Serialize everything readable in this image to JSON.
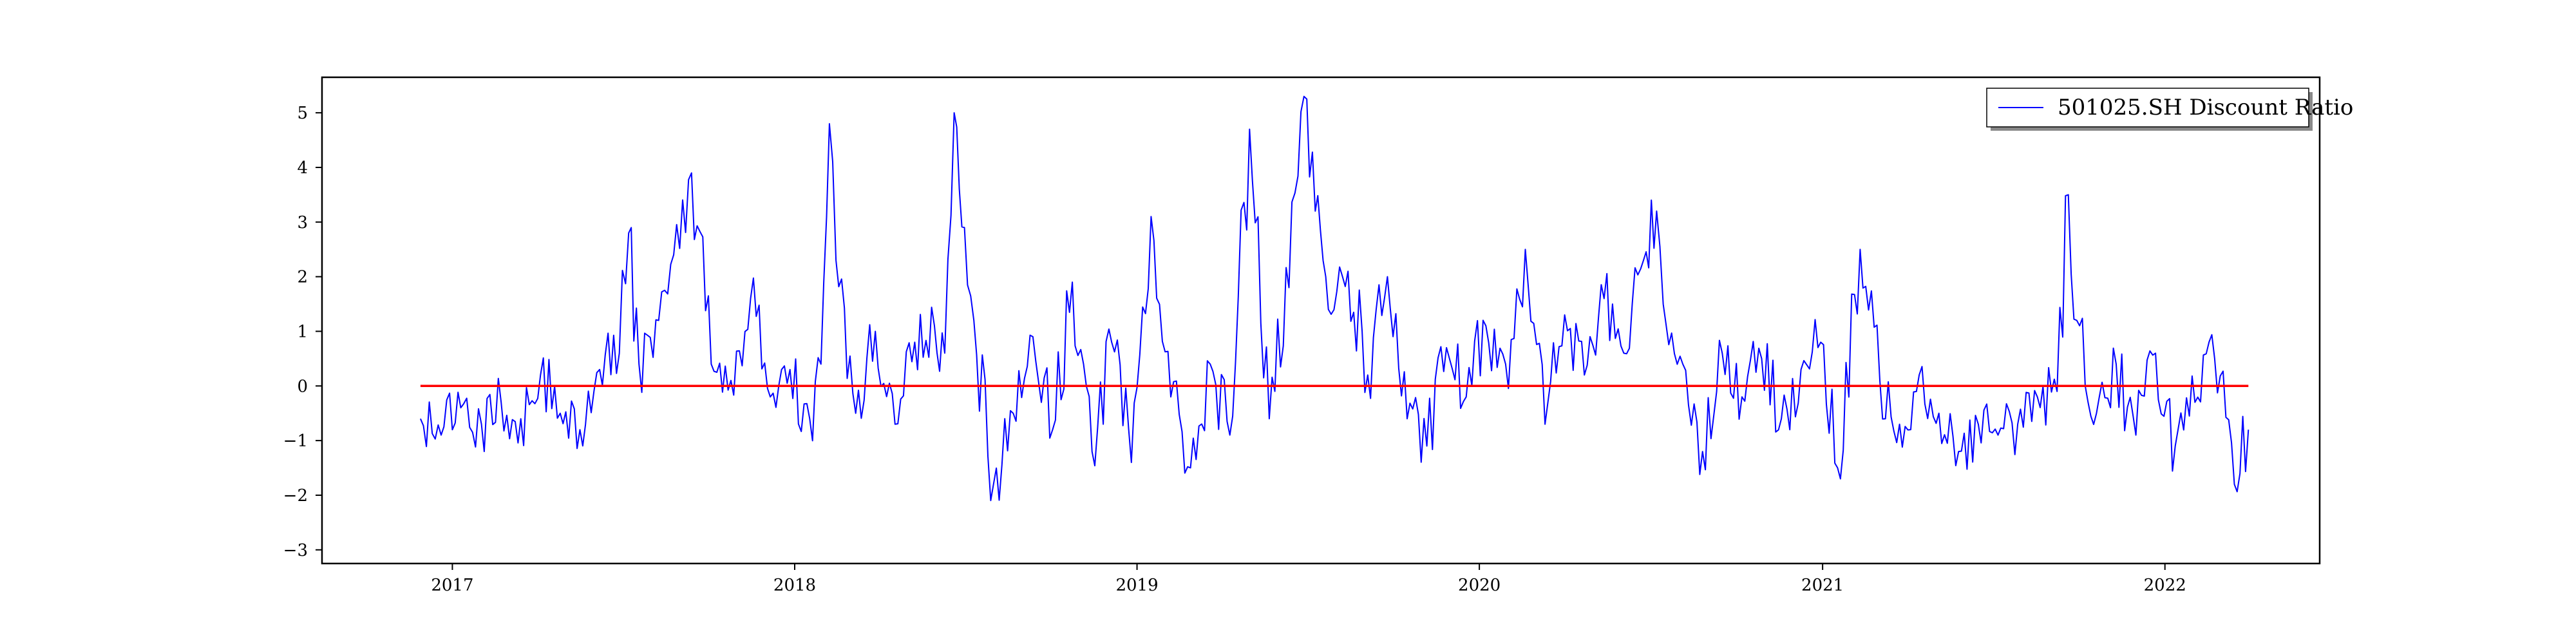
{
  "chart_data": {
    "type": "line",
    "title": "",
    "xlabel": "",
    "ylabel": "",
    "x_start": "2016-11-28",
    "x_end": "2022-03-31",
    "xlim": [
      "2016-08-15",
      "2022-06-15"
    ],
    "ylim": [
      -3.25,
      5.65
    ],
    "x_ticks": [
      {
        "date": "2017-01-01",
        "label": "2017"
      },
      {
        "date": "2018-01-01",
        "label": "2018"
      },
      {
        "date": "2019-01-01",
        "label": "2019"
      },
      {
        "date": "2020-01-01",
        "label": "2020"
      },
      {
        "date": "2021-01-01",
        "label": "2021"
      },
      {
        "date": "2022-01-01",
        "label": "2022"
      }
    ],
    "y_ticks": [
      {
        "value": -3,
        "label": "−3"
      },
      {
        "value": -2,
        "label": "−2"
      },
      {
        "value": -1,
        "label": "−1"
      },
      {
        "value": 0,
        "label": "0"
      },
      {
        "value": 1,
        "label": "1"
      },
      {
        "value": 2,
        "label": "2"
      },
      {
        "value": 3,
        "label": "3"
      },
      {
        "value": 4,
        "label": "4"
      },
      {
        "value": 5,
        "label": "5"
      }
    ],
    "grid": false,
    "legend_position": "top-right",
    "series": [
      {
        "name": "501025.SH Discount Ratio",
        "color": "#0000ff",
        "x": [
          "2016-11-28",
          "2016-12-20",
          "2017-01-10",
          "2017-02-01",
          "2017-02-22",
          "2017-03-15",
          "2017-04-05",
          "2017-04-26",
          "2017-05-17",
          "2017-06-07",
          "2017-06-28",
          "2017-07-08",
          "2017-07-19",
          "2017-08-09",
          "2017-08-25",
          "2017-09-13",
          "2017-10-04",
          "2017-10-25",
          "2017-11-15",
          "2017-12-06",
          "2017-12-27",
          "2018-01-17",
          "2018-01-29",
          "2018-02-07",
          "2018-02-14",
          "2018-03-07",
          "2018-03-28",
          "2018-04-18",
          "2018-05-09",
          "2018-05-30",
          "2018-06-10",
          "2018-06-20",
          "2018-07-01",
          "2018-07-11",
          "2018-08-01",
          "2018-08-22",
          "2018-09-12",
          "2018-10-03",
          "2018-10-24",
          "2018-11-14",
          "2018-12-05",
          "2018-12-26",
          "2019-01-16",
          "2019-02-06",
          "2019-02-27",
          "2019-03-20",
          "2019-04-10",
          "2019-05-01",
          "2019-05-22",
          "2019-06-12",
          "2019-06-28",
          "2019-07-10",
          "2019-07-24",
          "2019-08-14",
          "2019-09-04",
          "2019-09-25",
          "2019-10-16",
          "2019-11-06",
          "2019-11-27",
          "2019-12-18",
          "2020-01-08",
          "2020-01-29",
          "2020-02-19",
          "2020-03-11",
          "2020-04-01",
          "2020-04-22",
          "2020-05-13",
          "2020-06-03",
          "2020-06-24",
          "2020-07-08",
          "2020-07-15",
          "2020-08-05",
          "2020-08-26",
          "2020-09-16",
          "2020-10-07",
          "2020-10-28",
          "2020-11-18",
          "2020-12-09",
          "2020-12-30",
          "2021-01-20",
          "2021-02-10",
          "2021-03-03",
          "2021-03-24",
          "2021-04-14",
          "2021-05-05",
          "2021-05-26",
          "2021-06-16",
          "2021-07-07",
          "2021-07-28",
          "2021-08-18",
          "2021-09-08",
          "2021-09-20",
          "2021-09-29",
          "2021-10-20",
          "2021-11-10",
          "2021-12-01",
          "2021-12-22",
          "2022-01-12",
          "2022-02-02",
          "2022-02-23",
          "2022-03-16",
          "2022-03-31"
        ],
        "values": [
          -0.6,
          -0.9,
          -0.4,
          -0.7,
          -0.3,
          -0.6,
          0.2,
          -0.5,
          -0.8,
          0.3,
          0.6,
          2.8,
          0.4,
          1.2,
          2.4,
          3.9,
          0.4,
          0.1,
          1.6,
          -0.2,
          0.3,
          -0.6,
          0.4,
          4.8,
          2.3,
          -0.5,
          1.0,
          -0.7,
          0.8,
          1.1,
          0.6,
          5.0,
          2.9,
          1.2,
          -1.8,
          -0.5,
          0.9,
          -0.8,
          1.9,
          -1.2,
          0.8,
          -1.4,
          3.1,
          -0.2,
          -1.5,
          0.4,
          -0.9,
          4.7,
          -0.6,
          1.8,
          5.3,
          3.2,
          1.4,
          2.1,
          0.2,
          2.0,
          -0.6,
          -1.1,
          0.7,
          -0.2,
          1.1,
          0.4,
          2.5,
          -0.7,
          1.3,
          0.2,
          1.6,
          0.6,
          2.3,
          3.2,
          1.5,
          0.4,
          -1.2,
          0.6,
          -0.2,
          0.5,
          -0.6,
          0.3,
          0.8,
          -1.7,
          2.5,
          0.1,
          -0.7,
          0.2,
          -0.5,
          -1.2,
          -0.7,
          -0.9,
          -0.7,
          -0.2,
          -0.1,
          3.5,
          1.2,
          -0.5,
          0.4,
          -0.9,
          0.6,
          -1.1,
          -0.3,
          0.5,
          -1.8,
          -0.8
        ]
      },
      {
        "name": "",
        "color": "#ff0000",
        "x": [
          "2016-11-28",
          "2022-03-31"
        ],
        "values": [
          0,
          0
        ]
      }
    ]
  }
}
